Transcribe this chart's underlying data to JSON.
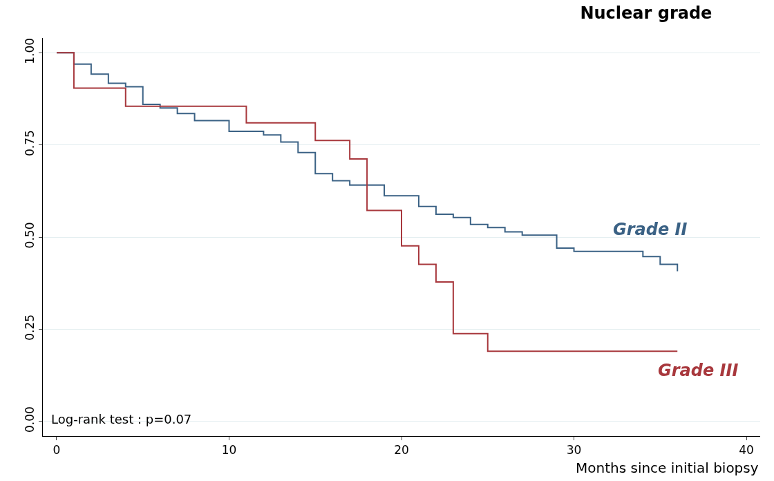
{
  "chart_data": {
    "type": "step",
    "title": "Nuclear grade",
    "xlabel": "Months since initial biopsy",
    "xlim": [
      -0.8,
      40.8
    ],
    "xticks": [
      0,
      10,
      20,
      30,
      40
    ],
    "ylim": [
      -0.04,
      1.04
    ],
    "yticks": [
      {
        "value": 0,
        "label": "0.00"
      },
      {
        "value": 0.25,
        "label": "0.25"
      },
      {
        "value": 0.5,
        "label": "0.50"
      },
      {
        "value": 0.75,
        "label": "0.75"
      },
      {
        "value": 1,
        "label": "1.00"
      }
    ],
    "grid": "y",
    "legend": false,
    "line_style": "solid",
    "annotations": [
      "Log-rank test : p=0.07"
    ],
    "series": [
      {
        "name": "Grade II",
        "color": "#3b6285",
        "x": [
          0,
          1,
          2,
          3,
          4,
          5,
          6,
          7,
          8,
          10,
          12,
          13,
          14,
          15,
          16,
          17,
          19,
          21,
          22,
          23,
          24,
          25,
          26,
          27,
          29,
          30,
          34,
          35,
          36
        ],
        "values": [
          1.0,
          0.969,
          0.942,
          0.917,
          0.908,
          0.86,
          0.85,
          0.835,
          0.816,
          0.787,
          0.777,
          0.758,
          0.729,
          0.672,
          0.653,
          0.641,
          0.612,
          0.583,
          0.562,
          0.553,
          0.534,
          0.526,
          0.514,
          0.505,
          0.47,
          0.461,
          0.447,
          0.426,
          0.407
        ]
      },
      {
        "name": "Grade III",
        "color": "#a8383d",
        "x": [
          0,
          1,
          4,
          11,
          15,
          17,
          18,
          20,
          21,
          22,
          23,
          25,
          36
        ],
        "values": [
          1.0,
          0.904,
          0.855,
          0.81,
          0.762,
          0.712,
          0.572,
          0.476,
          0.426,
          0.378,
          0.238,
          0.19,
          0.19
        ]
      }
    ]
  }
}
